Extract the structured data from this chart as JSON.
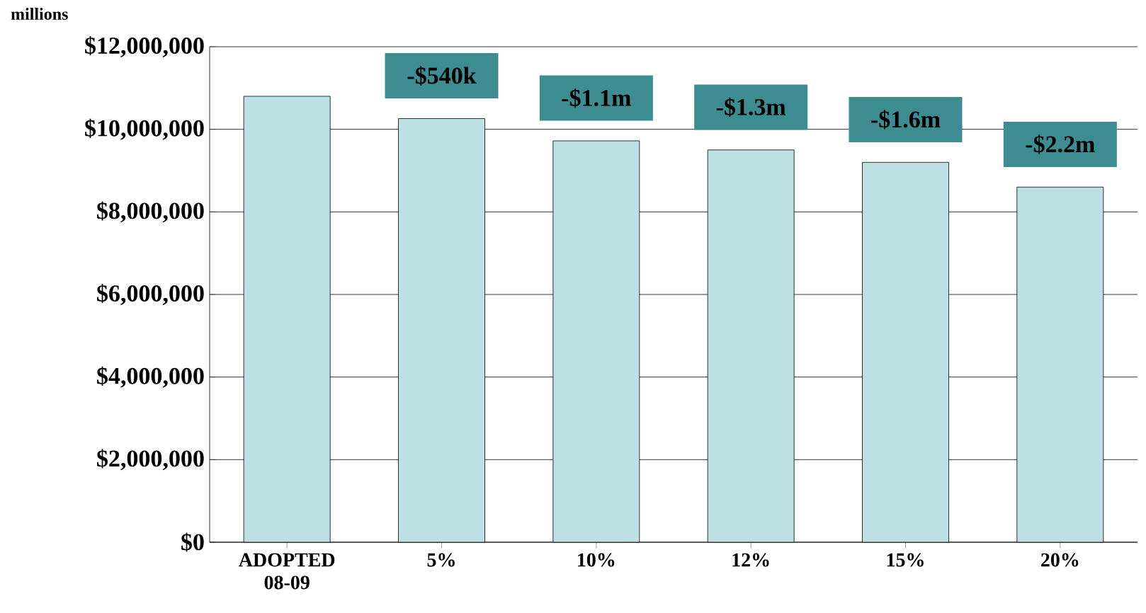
{
  "chart_data": {
    "type": "bar",
    "ylabel": "millions",
    "categories": [
      "ADOPTED 08-09",
      "5%",
      "10%",
      "12%",
      "15%",
      "20%"
    ],
    "values": [
      10800000,
      10260000,
      9720000,
      9500000,
      9200000,
      8600000
    ],
    "color": "#bce0e3",
    "ylim": [
      0,
      12000000
    ],
    "yticks": [
      {
        "value": 0,
        "label": "$0"
      },
      {
        "value": 2000000,
        "label": "$2,000,000"
      },
      {
        "value": 4000000,
        "label": "$4,000,000"
      },
      {
        "value": 6000000,
        "label": "$6,000,000"
      },
      {
        "value": 8000000,
        "label": "$8,000,000"
      },
      {
        "value": 10000000,
        "label": "$10,000,000"
      },
      {
        "value": 12000000,
        "label": "$12,000,000"
      }
    ],
    "grid": "y",
    "annotations": [
      {
        "text": "-$540k",
        "x": "5%",
        "y": 10260000
      },
      {
        "text": "-$1.1m",
        "x": "10%",
        "y": 9720000
      },
      {
        "text": "-$1.3m",
        "x": "12%",
        "y": 9500000
      },
      {
        "text": "-$1.6m",
        "x": "15%",
        "y": 9200000
      },
      {
        "text": "-$2.2m",
        "x": "20%",
        "y": 8600000
      }
    ]
  }
}
